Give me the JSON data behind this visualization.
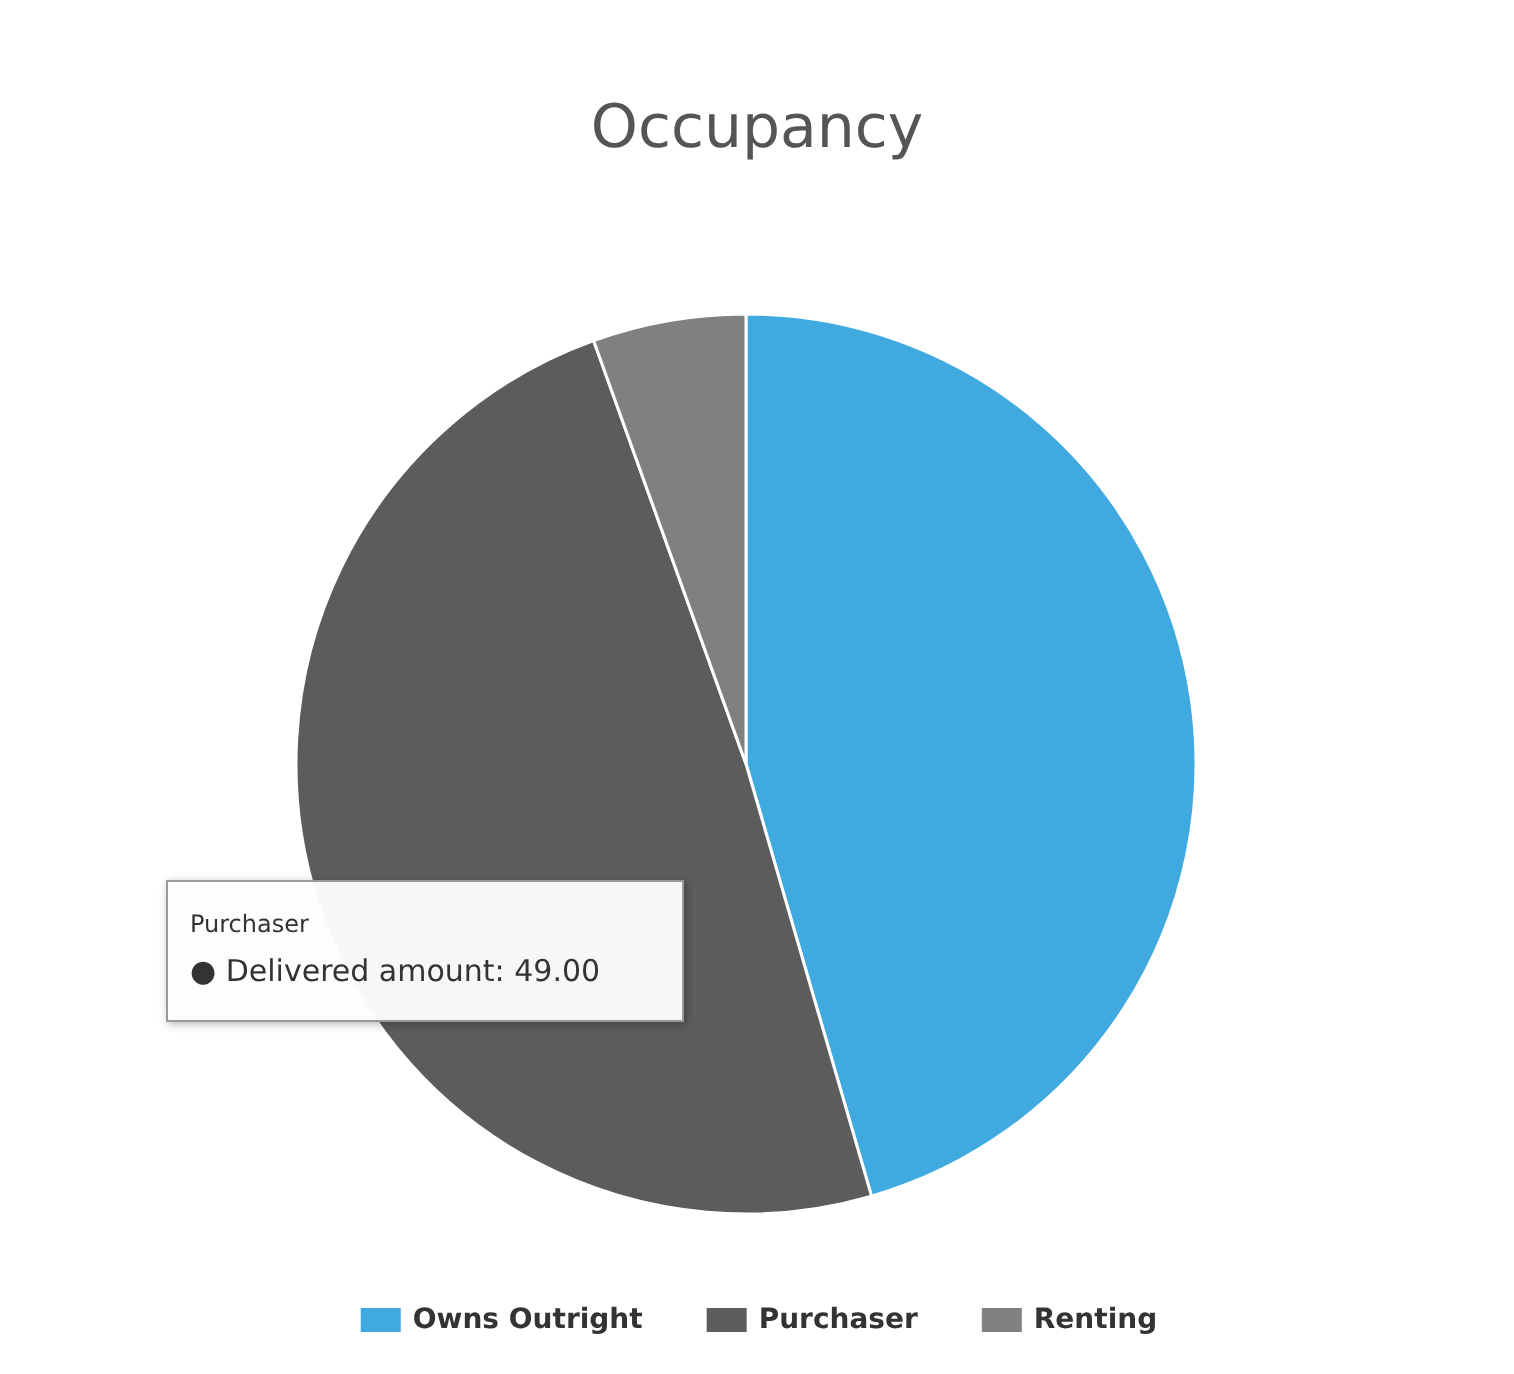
{
  "chart_data": {
    "type": "pie",
    "title": "Occupancy",
    "categories": [
      "Owns Outright",
      "Purchaser",
      "Renting"
    ],
    "values": [
      45.5,
      49,
      5.5
    ],
    "colors": [
      "#3fa9e0",
      "#5c5c5c",
      "#808080"
    ],
    "legend": "bottom",
    "annotations": [
      "Purchaser",
      "● Delivered amount: 49.00"
    ]
  }
}
